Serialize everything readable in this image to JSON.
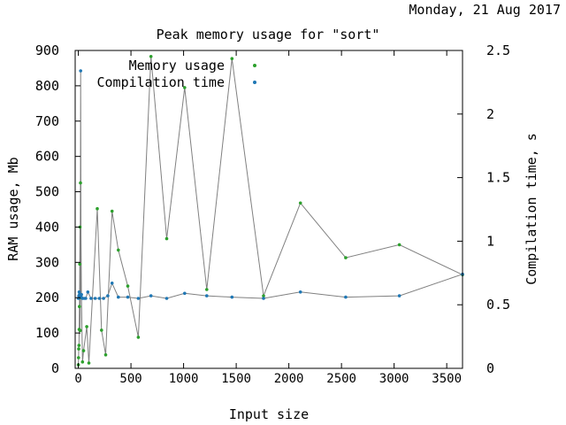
{
  "date": "Monday, 21 Aug 2017",
  "chart_data": {
    "type": "scatter",
    "title": "Peak memory usage for \"sort\"",
    "xlabel": "Input size",
    "ylabel": "RAM usage, Mb",
    "y2label": "Compilation time, s",
    "xlim": [
      -30,
      3650
    ],
    "ylim": [
      0,
      900
    ],
    "y2lim": [
      0,
      2.5
    ],
    "xticks": [
      0,
      500,
      1000,
      1500,
      2000,
      2500,
      3000,
      3500
    ],
    "yticks": [
      0,
      100,
      200,
      300,
      400,
      500,
      600,
      700,
      800,
      900
    ],
    "y2ticks": [
      0,
      0.5,
      1,
      1.5,
      2,
      2.5
    ],
    "grid": false,
    "legend_position": "top-right",
    "series": [
      {
        "name": "Memory usage",
        "color": "#2ca02c",
        "axis": "left",
        "points": [
          [
            0,
            10
          ],
          [
            2,
            30
          ],
          [
            4,
            55
          ],
          [
            6,
            65
          ],
          [
            8,
            110
          ],
          [
            10,
            175
          ],
          [
            12,
            200
          ],
          [
            14,
            295
          ],
          [
            16,
            400
          ],
          [
            18,
            107
          ],
          [
            20,
            525
          ],
          [
            30,
            200
          ],
          [
            40,
            18
          ],
          [
            50,
            50
          ],
          [
            80,
            118
          ],
          [
            100,
            15
          ],
          [
            180,
            452
          ],
          [
            220,
            108
          ],
          [
            260,
            38
          ],
          [
            320,
            445
          ],
          [
            380,
            335
          ],
          [
            470,
            233
          ],
          [
            570,
            88
          ],
          [
            690,
            883
          ],
          [
            840,
            367
          ],
          [
            1010,
            795
          ],
          [
            1220,
            223
          ],
          [
            1460,
            877
          ],
          [
            1760,
            205
          ],
          [
            2110,
            468
          ],
          [
            2540,
            313
          ],
          [
            3050,
            350
          ],
          [
            3650,
            265
          ]
        ]
      },
      {
        "name": "Compilation time",
        "color": "#1f77b4",
        "axis": "right",
        "points": [
          [
            0,
            0.55
          ],
          [
            5,
            0.57
          ],
          [
            8,
            0.6
          ],
          [
            12,
            0.58
          ],
          [
            18,
            0.56
          ],
          [
            22,
            2.34
          ],
          [
            26,
            0.56
          ],
          [
            30,
            0.58
          ],
          [
            40,
            0.55
          ],
          [
            55,
            0.55
          ],
          [
            70,
            0.55
          ],
          [
            90,
            0.6
          ],
          [
            120,
            0.55
          ],
          [
            160,
            0.55
          ],
          [
            200,
            0.55
          ],
          [
            240,
            0.55
          ],
          [
            280,
            0.57
          ],
          [
            320,
            0.67
          ],
          [
            380,
            0.56
          ],
          [
            470,
            0.56
          ],
          [
            570,
            0.55
          ],
          [
            690,
            0.57
          ],
          [
            840,
            0.55
          ],
          [
            1010,
            0.59
          ],
          [
            1220,
            0.57
          ],
          [
            1460,
            0.56
          ],
          [
            1760,
            0.55
          ],
          [
            2110,
            0.6
          ],
          [
            2540,
            0.56
          ],
          [
            3050,
            0.57
          ],
          [
            3650,
            0.74
          ]
        ]
      }
    ]
  }
}
